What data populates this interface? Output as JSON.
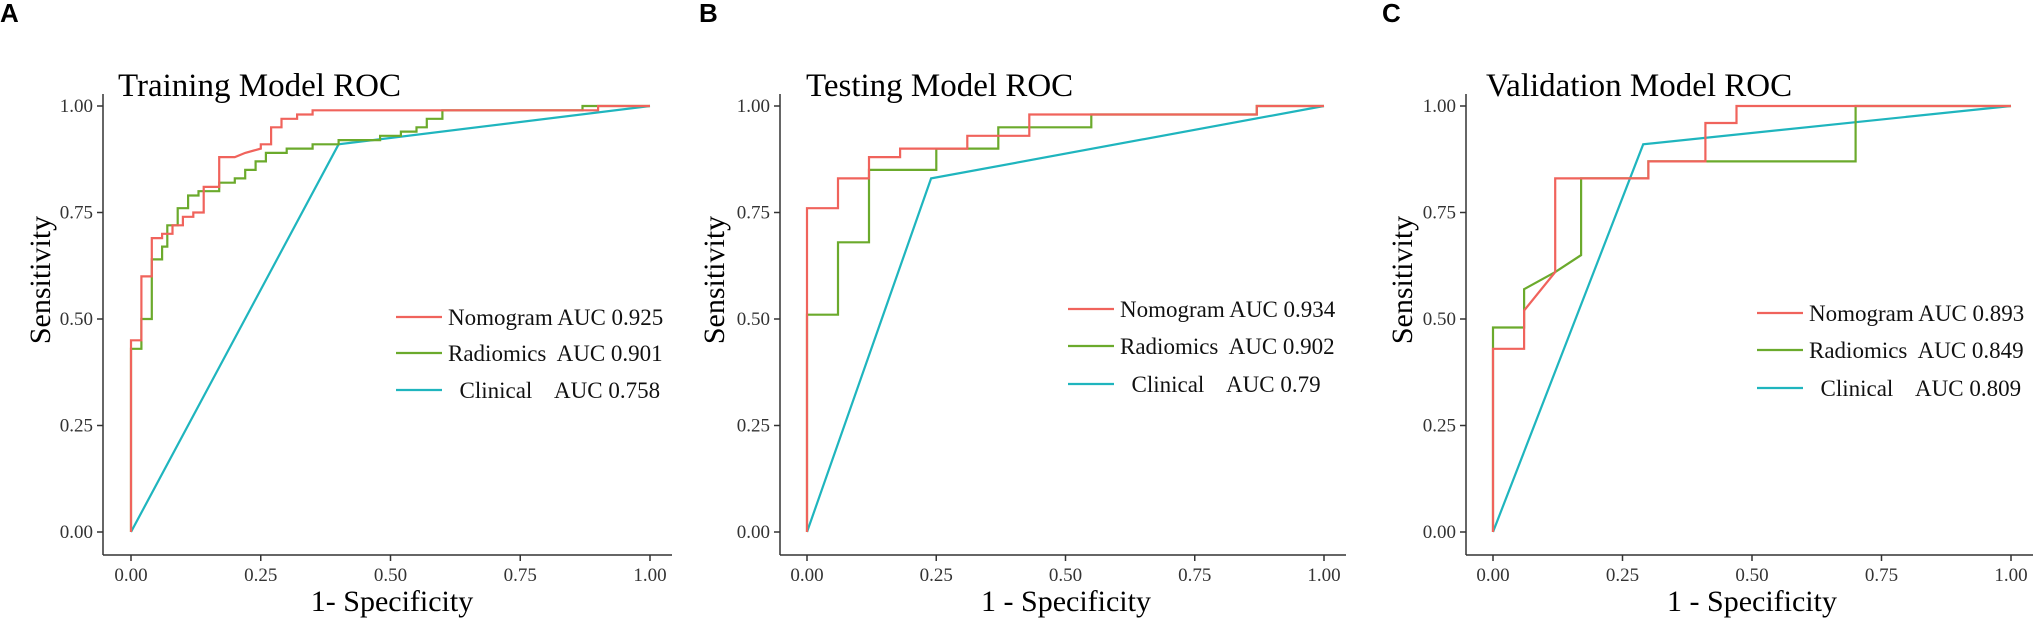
{
  "colors": {
    "Nomogram": "#F0635C",
    "Radiomics": "#6BAA2C",
    "Clinical": "#1FB5BE"
  },
  "chart_data": [
    {
      "type": "line",
      "panel": "A",
      "title": "Training Model ROC",
      "xlabel": "1- Specificity",
      "ylabel": "Sensitivity",
      "xlim": [
        0,
        1
      ],
      "ylim": [
        0,
        1
      ],
      "xticks": [
        "0.00",
        "0.25",
        "0.50",
        "0.75",
        "1.00"
      ],
      "yticks": [
        "0.00",
        "0.25",
        "0.50",
        "0.75",
        "1.00"
      ],
      "legend_position": "center-right",
      "series": [
        {
          "name": "Nomogram",
          "legend_label": "Nomogram AUC 0.925",
          "points": [
            [
              0,
              0
            ],
            [
              0,
              0.45
            ],
            [
              0.02,
              0.45
            ],
            [
              0.02,
              0.6
            ],
            [
              0.04,
              0.6
            ],
            [
              0.04,
              0.69
            ],
            [
              0.06,
              0.69
            ],
            [
              0.06,
              0.7
            ],
            [
              0.08,
              0.7
            ],
            [
              0.08,
              0.72
            ],
            [
              0.1,
              0.72
            ],
            [
              0.1,
              0.74
            ],
            [
              0.12,
              0.74
            ],
            [
              0.12,
              0.75
            ],
            [
              0.14,
              0.75
            ],
            [
              0.14,
              0.81
            ],
            [
              0.17,
              0.81
            ],
            [
              0.17,
              0.88
            ],
            [
              0.2,
              0.88
            ],
            [
              0.22,
              0.89
            ],
            [
              0.25,
              0.9
            ],
            [
              0.25,
              0.91
            ],
            [
              0.27,
              0.91
            ],
            [
              0.27,
              0.95
            ],
            [
              0.29,
              0.95
            ],
            [
              0.29,
              0.97
            ],
            [
              0.32,
              0.97
            ],
            [
              0.32,
              0.98
            ],
            [
              0.35,
              0.98
            ],
            [
              0.35,
              0.99
            ],
            [
              0.9,
              0.99
            ],
            [
              0.9,
              1
            ],
            [
              1,
              1
            ]
          ]
        },
        {
          "name": "Radiomics",
          "legend_label": "Radiomics  AUC 0.901",
          "points": [
            [
              0,
              0
            ],
            [
              0,
              0.43
            ],
            [
              0.02,
              0.43
            ],
            [
              0.02,
              0.5
            ],
            [
              0.04,
              0.5
            ],
            [
              0.04,
              0.64
            ],
            [
              0.06,
              0.64
            ],
            [
              0.06,
              0.67
            ],
            [
              0.07,
              0.67
            ],
            [
              0.07,
              0.72
            ],
            [
              0.09,
              0.72
            ],
            [
              0.09,
              0.76
            ],
            [
              0.11,
              0.76
            ],
            [
              0.11,
              0.79
            ],
            [
              0.13,
              0.79
            ],
            [
              0.13,
              0.8
            ],
            [
              0.17,
              0.8
            ],
            [
              0.17,
              0.82
            ],
            [
              0.2,
              0.82
            ],
            [
              0.2,
              0.83
            ],
            [
              0.22,
              0.83
            ],
            [
              0.22,
              0.85
            ],
            [
              0.24,
              0.85
            ],
            [
              0.24,
              0.87
            ],
            [
              0.26,
              0.87
            ],
            [
              0.26,
              0.89
            ],
            [
              0.3,
              0.89
            ],
            [
              0.3,
              0.9
            ],
            [
              0.35,
              0.9
            ],
            [
              0.35,
              0.91
            ],
            [
              0.4,
              0.91
            ],
            [
              0.4,
              0.92
            ],
            [
              0.48,
              0.92
            ],
            [
              0.48,
              0.93
            ],
            [
              0.52,
              0.93
            ],
            [
              0.52,
              0.94
            ],
            [
              0.55,
              0.94
            ],
            [
              0.55,
              0.95
            ],
            [
              0.57,
              0.95
            ],
            [
              0.57,
              0.97
            ],
            [
              0.6,
              0.97
            ],
            [
              0.6,
              0.99
            ],
            [
              0.87,
              0.99
            ],
            [
              0.87,
              1
            ],
            [
              1,
              1
            ]
          ]
        },
        {
          "name": "Clinical",
          "legend_label": "  Clinical    AUC 0.758",
          "points": [
            [
              0,
              0
            ],
            [
              0.4,
              0.91
            ],
            [
              1,
              1
            ]
          ]
        }
      ]
    },
    {
      "type": "line",
      "panel": "B",
      "title": "Testing Model ROC",
      "xlabel": "1 - Specificity",
      "ylabel": "Sensitivity",
      "xlim": [
        0,
        1
      ],
      "ylim": [
        0,
        1
      ],
      "xticks": [
        "0.00",
        "0.25",
        "0.50",
        "0.75",
        "1.00"
      ],
      "yticks": [
        "0.00",
        "0.25",
        "0.50",
        "0.75",
        "1.00"
      ],
      "legend_position": "center-right",
      "series": [
        {
          "name": "Nomogram",
          "legend_label": "Nomogram AUC 0.934",
          "points": [
            [
              0,
              0
            ],
            [
              0,
              0.76
            ],
            [
              0.06,
              0.76
            ],
            [
              0.06,
              0.83
            ],
            [
              0.12,
              0.83
            ],
            [
              0.12,
              0.88
            ],
            [
              0.18,
              0.88
            ],
            [
              0.18,
              0.9
            ],
            [
              0.31,
              0.9
            ],
            [
              0.31,
              0.93
            ],
            [
              0.43,
              0.93
            ],
            [
              0.43,
              0.98
            ],
            [
              0.87,
              0.98
            ],
            [
              0.87,
              1
            ],
            [
              1,
              1
            ]
          ]
        },
        {
          "name": "Radiomics",
          "legend_label": "Radiomics  AUC 0.902",
          "points": [
            [
              0,
              0
            ],
            [
              0,
              0.51
            ],
            [
              0.06,
              0.51
            ],
            [
              0.06,
              0.68
            ],
            [
              0.12,
              0.68
            ],
            [
              0.12,
              0.85
            ],
            [
              0.25,
              0.85
            ],
            [
              0.25,
              0.9
            ],
            [
              0.37,
              0.9
            ],
            [
              0.37,
              0.95
            ],
            [
              0.55,
              0.95
            ],
            [
              0.55,
              0.98
            ],
            [
              0.87,
              0.98
            ],
            [
              0.87,
              1
            ],
            [
              1,
              1
            ]
          ]
        },
        {
          "name": "Clinical",
          "legend_label": "  Clinical    AUC 0.79",
          "points": [
            [
              0,
              0
            ],
            [
              0.24,
              0.83
            ],
            [
              1,
              1
            ]
          ]
        }
      ]
    },
    {
      "type": "line",
      "panel": "C",
      "title": "Validation Model ROC",
      "xlabel": "1 - Specificity",
      "ylabel": "Sensitivity",
      "xlim": [
        0,
        1
      ],
      "ylim": [
        0,
        1
      ],
      "xticks": [
        "0.00",
        "0.25",
        "0.50",
        "0.75",
        "1.00"
      ],
      "yticks": [
        "0.00",
        "0.25",
        "0.50",
        "0.75",
        "1.00"
      ],
      "legend_position": "center-right",
      "series": [
        {
          "name": "Nomogram",
          "legend_label": "Nomogram AUC 0.893",
          "points": [
            [
              0,
              0
            ],
            [
              0,
              0.43
            ],
            [
              0.06,
              0.43
            ],
            [
              0.06,
              0.52
            ],
            [
              0.12,
              0.61
            ],
            [
              0.12,
              0.83
            ],
            [
              0.18,
              0.83
            ],
            [
              0.3,
              0.83
            ],
            [
              0.3,
              0.87
            ],
            [
              0.41,
              0.87
            ],
            [
              0.41,
              0.96
            ],
            [
              0.47,
              0.96
            ],
            [
              0.47,
              1
            ],
            [
              1,
              1
            ]
          ]
        },
        {
          "name": "Radiomics",
          "legend_label": "Radiomics  AUC 0.849",
          "points": [
            [
              0,
              0
            ],
            [
              0,
              0.48
            ],
            [
              0.06,
              0.48
            ],
            [
              0.06,
              0.57
            ],
            [
              0.12,
              0.61
            ],
            [
              0.17,
              0.65
            ],
            [
              0.17,
              0.83
            ],
            [
              0.3,
              0.83
            ],
            [
              0.3,
              0.87
            ],
            [
              0.7,
              0.87
            ],
            [
              0.7,
              1
            ],
            [
              1,
              1
            ]
          ]
        },
        {
          "name": "Clinical",
          "legend_label": "  Clinical    AUC 0.809",
          "points": [
            [
              0,
              0
            ],
            [
              0.29,
              0.91
            ],
            [
              1,
              1
            ]
          ]
        }
      ]
    }
  ]
}
